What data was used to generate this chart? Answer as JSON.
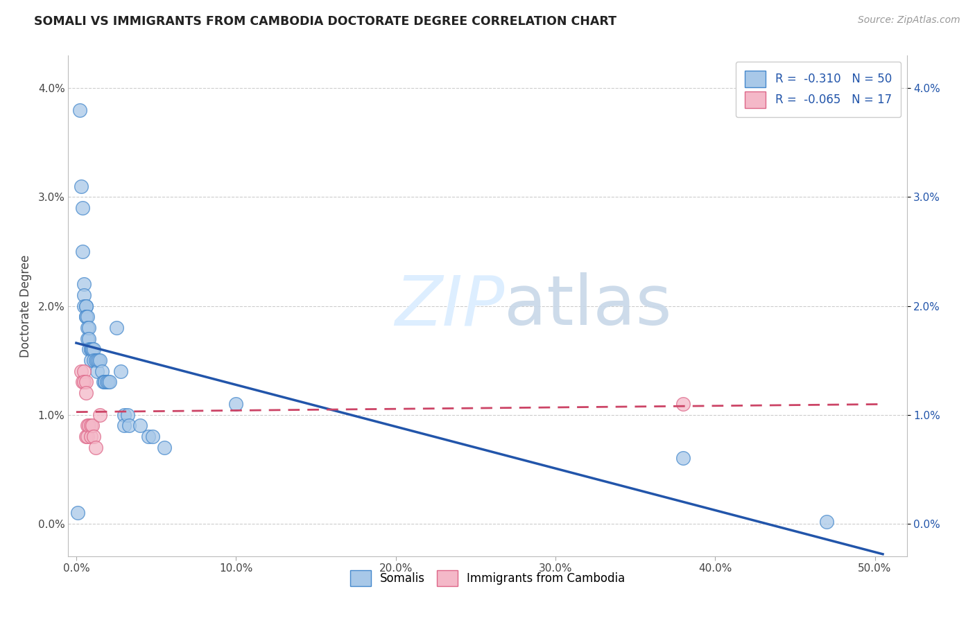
{
  "title": "SOMALI VS IMMIGRANTS FROM CAMBODIA DOCTORATE DEGREE CORRELATION CHART",
  "source": "Source: ZipAtlas.com",
  "ylabel": "Doctorate Degree",
  "xlim": [
    -0.005,
    0.52
  ],
  "ylim": [
    -0.003,
    0.043
  ],
  "xtick_vals": [
    0.0,
    0.1,
    0.2,
    0.3,
    0.4,
    0.5
  ],
  "ytick_vals": [
    0.0,
    0.01,
    0.02,
    0.03,
    0.04
  ],
  "legend_blue_label": "R =  -0.310   N = 50",
  "legend_pink_label": "R =  -0.065   N = 17",
  "legend_bottom_blue": "Somalis",
  "legend_bottom_pink": "Immigrants from Cambodia",
  "blue_fill": "#a8c8e8",
  "pink_fill": "#f4b8c8",
  "blue_edge": "#4488cc",
  "pink_edge": "#dd6688",
  "blue_line": "#2255aa",
  "pink_line": "#cc4466",
  "watermark_color": "#ddeeff",
  "somali_x": [
    0.001,
    0.002,
    0.003,
    0.004,
    0.004,
    0.005,
    0.005,
    0.005,
    0.006,
    0.006,
    0.006,
    0.006,
    0.007,
    0.007,
    0.007,
    0.008,
    0.008,
    0.008,
    0.009,
    0.009,
    0.009,
    0.01,
    0.01,
    0.011,
    0.011,
    0.012,
    0.013,
    0.013,
    0.014,
    0.015,
    0.016,
    0.017,
    0.018,
    0.018,
    0.019,
    0.02,
    0.021,
    0.025,
    0.028,
    0.03,
    0.03,
    0.032,
    0.033,
    0.04,
    0.045,
    0.048,
    0.055,
    0.1,
    0.38,
    0.47
  ],
  "somali_y": [
    0.001,
    0.038,
    0.031,
    0.029,
    0.025,
    0.022,
    0.021,
    0.02,
    0.02,
    0.02,
    0.019,
    0.019,
    0.019,
    0.018,
    0.017,
    0.018,
    0.017,
    0.016,
    0.016,
    0.016,
    0.015,
    0.016,
    0.016,
    0.016,
    0.015,
    0.015,
    0.015,
    0.014,
    0.015,
    0.015,
    0.014,
    0.013,
    0.013,
    0.013,
    0.013,
    0.013,
    0.013,
    0.018,
    0.014,
    0.01,
    0.009,
    0.01,
    0.009,
    0.009,
    0.008,
    0.008,
    0.007,
    0.011,
    0.006,
    0.0002
  ],
  "camb_x": [
    0.003,
    0.004,
    0.005,
    0.005,
    0.006,
    0.006,
    0.006,
    0.007,
    0.007,
    0.008,
    0.009,
    0.009,
    0.01,
    0.011,
    0.012,
    0.015,
    0.38
  ],
  "camb_y": [
    0.014,
    0.013,
    0.014,
    0.013,
    0.013,
    0.012,
    0.008,
    0.009,
    0.008,
    0.009,
    0.009,
    0.008,
    0.009,
    0.008,
    0.007,
    0.01,
    0.011
  ]
}
